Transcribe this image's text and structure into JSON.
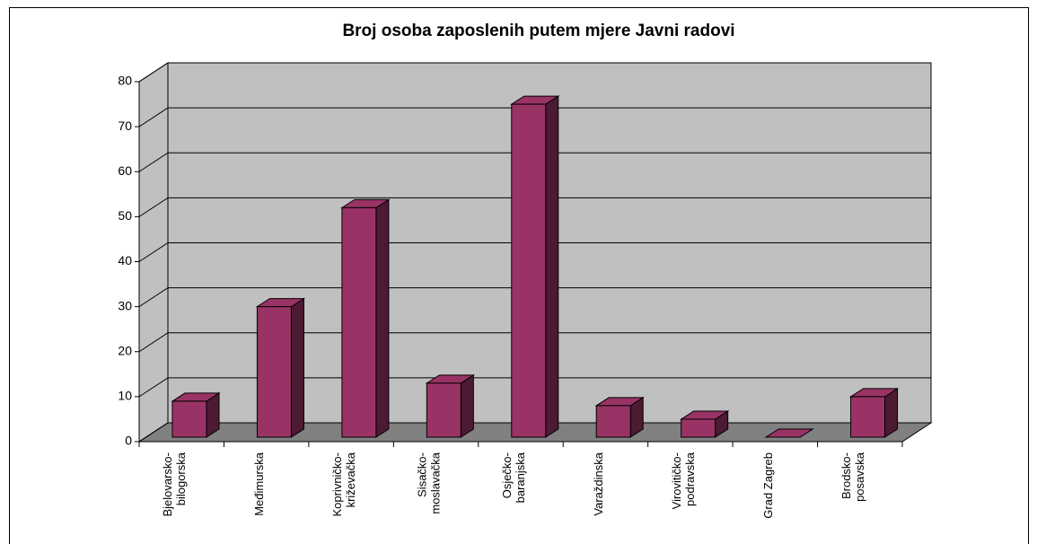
{
  "chart_data": {
    "type": "bar3d",
    "title": "Broj osoba zaposlenih putem mjere Javni radovi",
    "categories": [
      "Bjelovarsko-\nbilogorska",
      "Međimurska",
      "Koprivničko-\nkriževačka",
      "Sisačko-\nmoslavačka",
      "Osječko-\nbaranjska",
      "Varaždinska",
      "Virovitičko-\npodravska",
      "Grad Zagreb",
      "Brodsko-\nposavska"
    ],
    "values": [
      8,
      29,
      51,
      12,
      74,
      7,
      4,
      0,
      9
    ],
    "color": "#993366",
    "ylim": [
      0,
      80
    ],
    "yticks": [
      0,
      10,
      20,
      30,
      40,
      50,
      60,
      70,
      80
    ],
    "grid": true
  }
}
